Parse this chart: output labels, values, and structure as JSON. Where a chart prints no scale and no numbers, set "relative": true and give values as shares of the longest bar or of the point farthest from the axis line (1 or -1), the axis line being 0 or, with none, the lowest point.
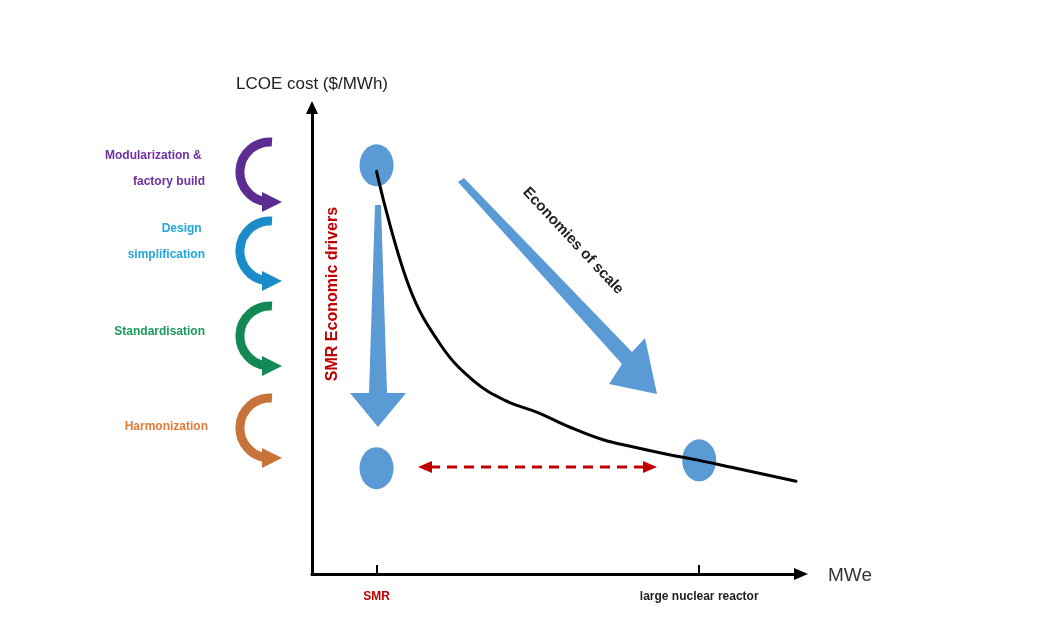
{
  "chart_data": {
    "type": "line",
    "relative": true,
    "xlabel": "MWe",
    "ylabel": "LCOE cost ($/MWh)",
    "categories": [
      null,
      null,
      "SMR",
      null,
      null,
      null,
      null,
      null,
      null,
      null,
      null,
      null,
      "large nuclear reactor",
      null,
      null,
      null
    ],
    "annotations": [
      "Modularization & factory build",
      "Design simplification",
      "Standardisation",
      "Harmonization",
      "SMR Economic drivers",
      "Economies of scale"
    ],
    "series": [
      {
        "color": "#000000",
        "marker": "none",
        "line_style": "solid",
        "values": [
          null,
          null,
          0.985,
          0.705,
          0.559,
          0.473,
          0.424,
          0.395,
          0.359,
          0.329,
          0.31,
          0.293,
          0.278,
          0.261,
          0.244,
          0.227
        ]
      },
      {
        "type": "scatter",
        "color": "#5b9bd5",
        "marker": "circle",
        "x": [
          "SMR",
          "SMR",
          "large nuclear reactor"
        ],
        "values": [
          1,
          0.259,
          0.278
        ]
      }
    ]
  }
}
